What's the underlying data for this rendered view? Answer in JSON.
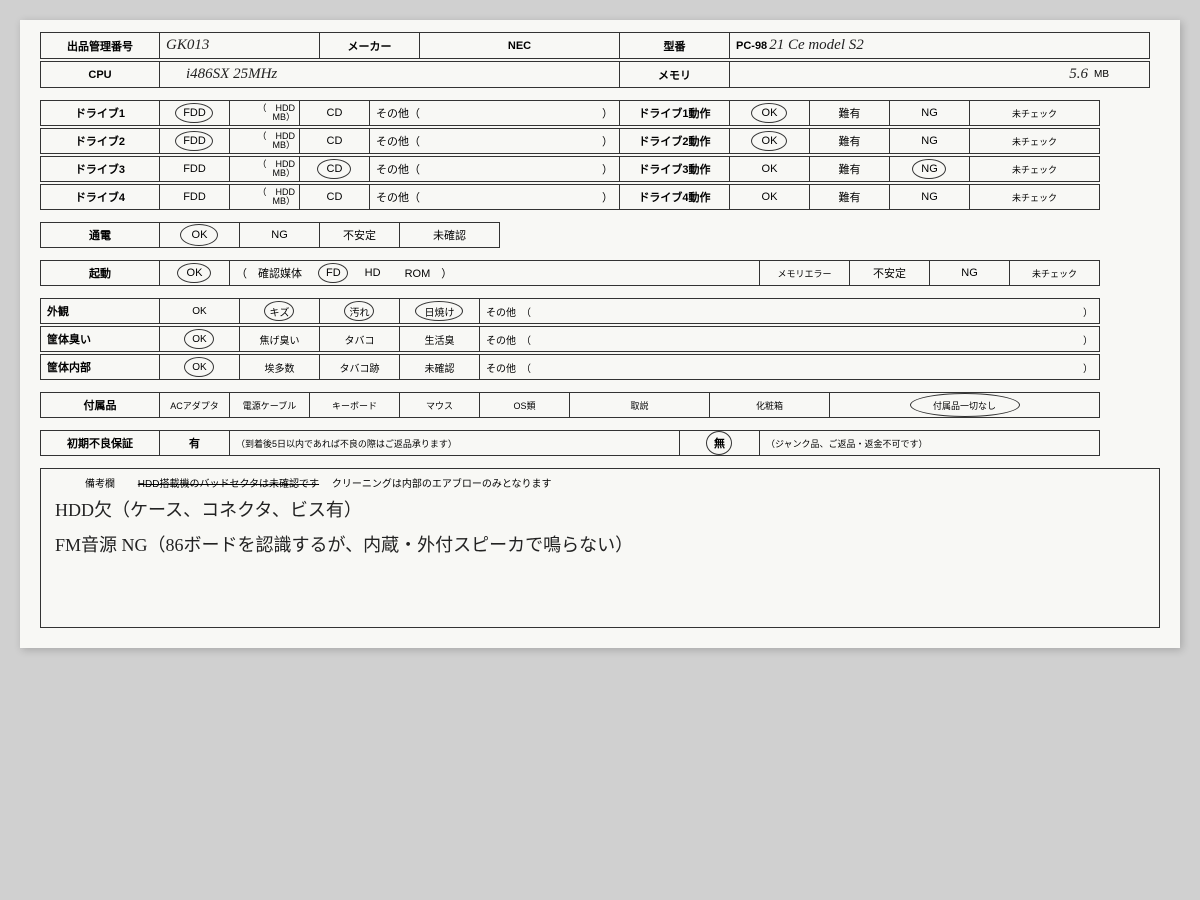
{
  "header": {
    "mgmt_label": "出品管理番号",
    "mgmt_value": "GK013",
    "maker_label": "メーカー",
    "maker_value": "NEC",
    "model_label": "型番",
    "model_prefix": "PC-98",
    "model_suffix": "21 Ce model S2"
  },
  "specs": {
    "cpu_label": "CPU",
    "cpu_value": "i486SX  25MHz",
    "mem_label": "メモリ",
    "mem_value": "5.6",
    "mem_unit": "MB"
  },
  "drives": {
    "labels": [
      "ドライブ1",
      "ドライブ2",
      "ドライブ3",
      "ドライブ4"
    ],
    "op_labels": [
      "ドライブ1動作",
      "ドライブ2動作",
      "ドライブ3動作",
      "ドライブ4動作"
    ],
    "opts": {
      "fdd": "FDD",
      "hdd_top": "HDD",
      "hdd_bot": "MB",
      "cd": "CD",
      "other": "その他（",
      "other_close": "）"
    },
    "status": {
      "ok": "OK",
      "nanyu": "難有",
      "ng": "NG",
      "unchecked": "未チェック"
    },
    "circled_type": [
      "fdd",
      "fdd",
      "cd",
      ""
    ],
    "circled_status": [
      "ok",
      "ok",
      "ng",
      ""
    ]
  },
  "power": {
    "label": "通電",
    "opts": [
      "OK",
      "NG",
      "不安定",
      "未確認"
    ],
    "circled": "OK"
  },
  "boot": {
    "label": "起動",
    "ok": "OK",
    "media_label": "（　確認媒体",
    "fd": "FD",
    "hd": "HD",
    "rom": "ROM　）",
    "memerr": "メモリエラー",
    "unstable": "不安定",
    "ng": "NG",
    "unchecked": "未チェック",
    "circled_ok": true,
    "circled_media": "FD"
  },
  "appearance": {
    "rows": [
      {
        "label": "外観",
        "opts": [
          "OK",
          "キズ",
          "汚れ",
          "日焼け"
        ],
        "other": "その他　（",
        "close": "）",
        "circled": [
          "キズ",
          "汚れ",
          "日焼け"
        ]
      },
      {
        "label": "筐体臭い",
        "opts": [
          "OK",
          "焦げ臭い",
          "タバコ",
          "生活臭"
        ],
        "other": "その他　（",
        "close": "）",
        "circled": [
          "OK"
        ]
      },
      {
        "label": "筐体内部",
        "opts": [
          "OK",
          "埃多数",
          "タバコ跡",
          "未確認"
        ],
        "other": "その他　（",
        "close": "）",
        "circled": [
          "OK"
        ]
      }
    ]
  },
  "accessories": {
    "label": "付属品",
    "opts": [
      "ACアダプタ",
      "電源ケーブル",
      "キーボード",
      "マウス",
      "OS類",
      "取説",
      "化粧箱"
    ],
    "none": "付属品一切なし",
    "circled_none": true
  },
  "warranty": {
    "label": "初期不良保証",
    "yes": "有",
    "yes_note": "（到着後5日以内であれば不良の際はご返品承ります）",
    "no": "無",
    "no_note": "（ジャンク品、ご返品・返金不可です）",
    "circled": "no"
  },
  "notes": {
    "title": "備考欄",
    "struck": "HDD搭載機のバッドセクタは未確認です",
    "fixed": "　クリーニングは内部のエアブローのみとなります",
    "line1": "HDD欠（ケース、コネクタ、ビス有）",
    "line2": "FM音源 NG（86ボードを認識するが、内蔵・外付スピーカで鳴らない）"
  },
  "style": {
    "border_color": "#333",
    "bg": "#f8f8f5",
    "hw_color": "#222"
  }
}
